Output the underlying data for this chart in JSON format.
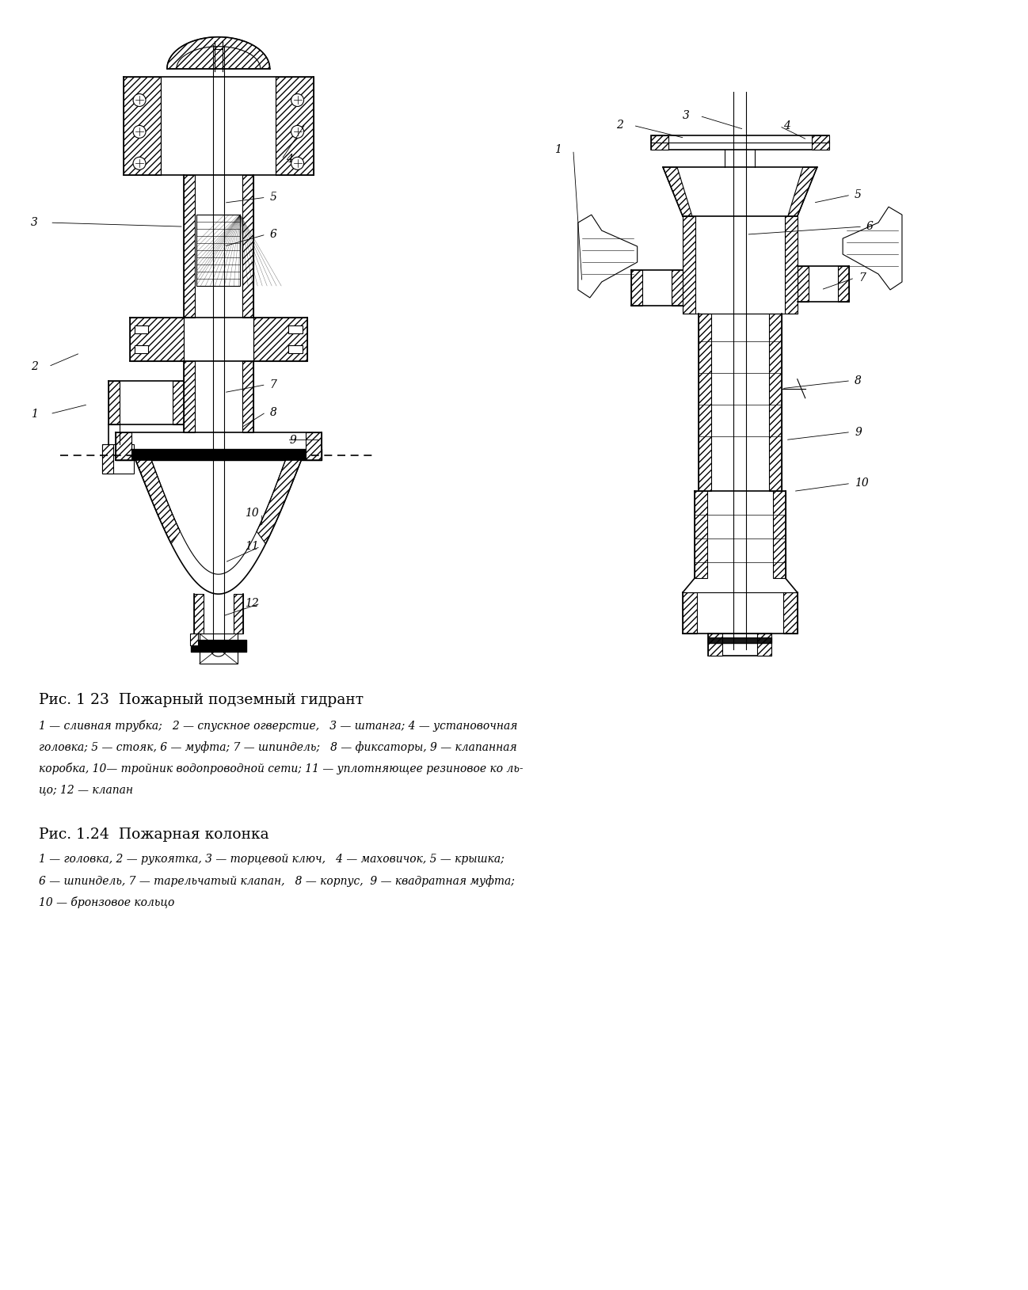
{
  "bg_color": "#ffffff",
  "fig_width": 12.98,
  "fig_height": 16.29,
  "title1": "Рис. 1 23  Пожарный подземный гидрант",
  "caption1_line1": "1 — сливная трубка;   2 — спускное огверстие,   3 — штанга; 4 — установочная",
  "caption1_line2": "головка; 5 — стояк, 6 — муфта; 7 — шпиндель;   8 — фиксаторы, 9 — клапанная",
  "caption1_line3": "коробка, 10— тройник водопроводной сети; 11 — уплотняющее резиновое ко ль-",
  "caption1_line4": "цо; 12 — клапан",
  "title2": "Рис. 1.24  Пожарная колонка",
  "caption2_line1": "1 — головка, 2 — рукоятка, 3 — торцевой ключ,   4 — маховичок, 5 — крышка;",
  "caption2_line2": "6 — шпиндель, 7 — тарельчатый клапан,   8 — корпус,  9 — квадратная муфта;",
  "caption2_line3": "10 — бронзовое кольцо",
  "text_color": "#000000",
  "line_color": "#000000"
}
